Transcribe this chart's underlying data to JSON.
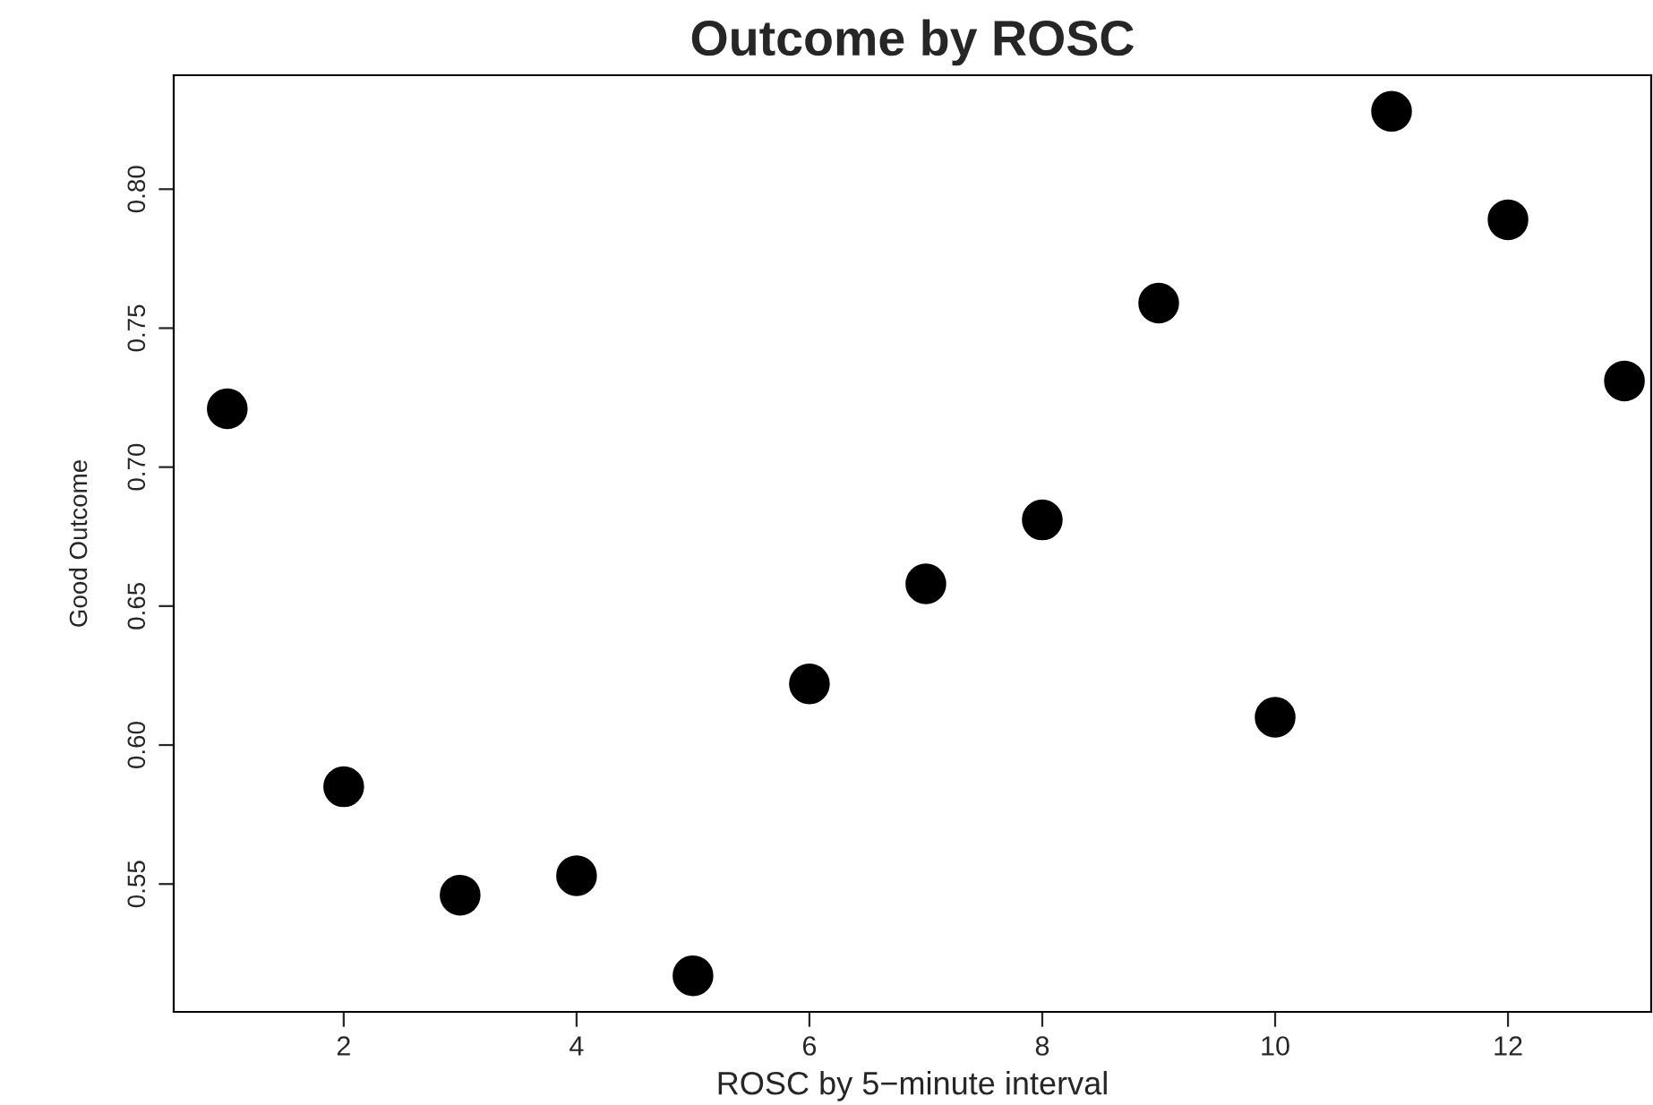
{
  "chart_data": {
    "type": "scatter",
    "title": "Outcome by ROSC",
    "xlabel": "ROSC by 5−minute interval",
    "ylabel": "Good Outcome",
    "x": [
      1,
      2,
      3,
      4,
      5,
      6,
      7,
      8,
      9,
      10,
      11,
      12,
      13
    ],
    "series": [
      {
        "color": "#000000",
        "values": [
          0.721,
          0.585,
          0.546,
          0.553,
          0.517,
          0.622,
          0.658,
          0.681,
          0.759,
          0.61,
          0.828,
          0.789,
          0.731
        ]
      }
    ],
    "xlim": [
      0.54,
      13.23
    ],
    "ylim": [
      0.504,
      0.841
    ],
    "xticks": [
      2,
      4,
      6,
      8,
      10,
      12
    ],
    "yticks": [
      {
        "value": 0.55,
        "label": "0.55"
      },
      {
        "value": 0.6,
        "label": "0.60"
      },
      {
        "value": 0.65,
        "label": "0.65"
      },
      {
        "value": 0.7,
        "label": "0.70"
      },
      {
        "value": 0.75,
        "label": "0.75"
      },
      {
        "value": 0.8,
        "label": "0.80"
      }
    ],
    "marker": "circle",
    "grid": false,
    "legend": false
  }
}
